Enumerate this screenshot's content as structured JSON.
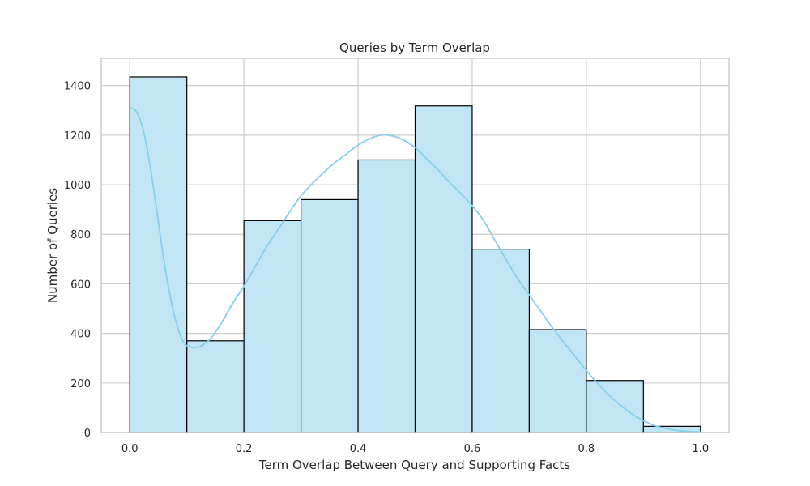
{
  "chart_data": {
    "type": "bar",
    "title": "Queries by Term Overlap",
    "xlabel": "Term Overlap Between Query and Supporting Facts",
    "ylabel": "Number of Queries",
    "bins": [
      {
        "x0": 0.0,
        "x1": 0.1,
        "value": 1435
      },
      {
        "x0": 0.1,
        "x1": 0.2,
        "value": 370
      },
      {
        "x0": 0.2,
        "x1": 0.3,
        "value": 855
      },
      {
        "x0": 0.3,
        "x1": 0.4,
        "value": 940
      },
      {
        "x0": 0.4,
        "x1": 0.5,
        "value": 1100
      },
      {
        "x0": 0.5,
        "x1": 0.6,
        "value": 1318
      },
      {
        "x0": 0.6,
        "x1": 0.7,
        "value": 740
      },
      {
        "x0": 0.7,
        "x1": 0.8,
        "value": 415
      },
      {
        "x0": 0.8,
        "x1": 0.9,
        "value": 210
      },
      {
        "x0": 0.9,
        "x1": 1.0,
        "value": 25
      }
    ],
    "kde": [
      [
        0.0,
        1310
      ],
      [
        0.01,
        1300
      ],
      [
        0.02,
        1250
      ],
      [
        0.03,
        1150
      ],
      [
        0.04,
        1010
      ],
      [
        0.05,
        850
      ],
      [
        0.06,
        690
      ],
      [
        0.07,
        560
      ],
      [
        0.08,
        455
      ],
      [
        0.09,
        385
      ],
      [
        0.1,
        350
      ],
      [
        0.12,
        345
      ],
      [
        0.14,
        375
      ],
      [
        0.16,
        440
      ],
      [
        0.18,
        520
      ],
      [
        0.2,
        590
      ],
      [
        0.22,
        670
      ],
      [
        0.24,
        750
      ],
      [
        0.26,
        820
      ],
      [
        0.28,
        890
      ],
      [
        0.3,
        955
      ],
      [
        0.32,
        1005
      ],
      [
        0.34,
        1050
      ],
      [
        0.36,
        1090
      ],
      [
        0.38,
        1125
      ],
      [
        0.4,
        1160
      ],
      [
        0.42,
        1185
      ],
      [
        0.44,
        1200
      ],
      [
        0.46,
        1197
      ],
      [
        0.48,
        1180
      ],
      [
        0.5,
        1150
      ],
      [
        0.52,
        1105
      ],
      [
        0.54,
        1060
      ],
      [
        0.56,
        1010
      ],
      [
        0.58,
        965
      ],
      [
        0.6,
        915
      ],
      [
        0.62,
        855
      ],
      [
        0.64,
        775
      ],
      [
        0.66,
        695
      ],
      [
        0.68,
        620
      ],
      [
        0.7,
        555
      ],
      [
        0.72,
        490
      ],
      [
        0.74,
        425
      ],
      [
        0.76,
        365
      ],
      [
        0.78,
        308
      ],
      [
        0.8,
        250
      ],
      [
        0.82,
        198
      ],
      [
        0.84,
        150
      ],
      [
        0.86,
        110
      ],
      [
        0.88,
        75
      ],
      [
        0.9,
        48
      ],
      [
        0.92,
        28
      ],
      [
        0.94,
        16
      ],
      [
        0.96,
        8
      ],
      [
        0.98,
        4
      ],
      [
        1.0,
        2
      ]
    ],
    "xlim": [
      -0.05,
      1.05
    ],
    "ylim": [
      0,
      1510
    ],
    "xticks": [
      0.0,
      0.2,
      0.4,
      0.6,
      0.8,
      1.0
    ],
    "xtick_labels": [
      "0.0",
      "0.2",
      "0.4",
      "0.6",
      "0.8",
      "1.0"
    ],
    "yticks": [
      0,
      200,
      400,
      600,
      800,
      1000,
      1200,
      1400
    ],
    "ytick_labels": [
      "0",
      "200",
      "400",
      "600",
      "800",
      "1000",
      "1200",
      "1400"
    ],
    "grid": true,
    "colors": {
      "bar_fill": "#c1e5f4",
      "bar_edge": "#000000",
      "kde_line": "#87ceeb",
      "grid": "#cccccc",
      "spine": "#cccccc",
      "text": "#262626"
    }
  }
}
